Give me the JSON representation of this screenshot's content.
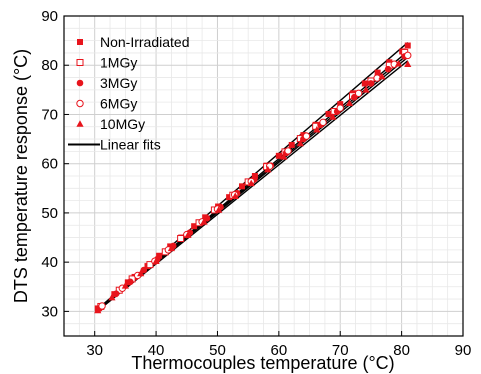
{
  "chart_data": {
    "type": "scatter",
    "title": "",
    "xlabel": "Thermocouples temperature (°C)",
    "ylabel": "DTS temperature response (°C)",
    "xlim": [
      25,
      90
    ],
    "ylim": [
      25,
      90
    ],
    "x_ticks": [
      30,
      40,
      50,
      60,
      70,
      80,
      90
    ],
    "y_ticks": [
      30,
      40,
      50,
      60,
      70,
      80,
      90
    ],
    "grid": true,
    "legend_position": "top-left",
    "marker_color": "#e8141c",
    "fit_color": "#000000",
    "series": [
      {
        "name": "Non-Irradiated",
        "marker": "filled-square",
        "points": [
          [
            30.5,
            30.6
          ],
          [
            33.2,
            33.5
          ],
          [
            35.4,
            35.9
          ],
          [
            36.5,
            37.0
          ],
          [
            38.6,
            39.2
          ],
          [
            40.5,
            41.3
          ],
          [
            42.3,
            43.2
          ],
          [
            44.1,
            45.0
          ],
          [
            46.2,
            47.3
          ],
          [
            48.0,
            49.1
          ],
          [
            50.1,
            51.3
          ],
          [
            51.9,
            53.2
          ],
          [
            54.0,
            55.4
          ],
          [
            56.1,
            57.5
          ],
          [
            58.0,
            59.6
          ],
          [
            60.0,
            61.6
          ],
          [
            62.1,
            63.8
          ],
          [
            64.0,
            65.8
          ],
          [
            66.0,
            67.9
          ],
          [
            68.1,
            70.1
          ],
          [
            70.0,
            72.1
          ],
          [
            72.1,
            74.3
          ],
          [
            74.0,
            76.3
          ],
          [
            76.1,
            78.5
          ],
          [
            78.0,
            80.6
          ],
          [
            80.1,
            82.8
          ],
          [
            81.0,
            84.0
          ]
        ],
        "fit": {
          "x0": 30.5,
          "y0": 30.5,
          "x1": 81.0,
          "y1": 84.6
        }
      },
      {
        "name": "1MGy",
        "marker": "open-square",
        "points": [
          [
            31.0,
            31.0
          ],
          [
            34.0,
            34.3
          ],
          [
            36.1,
            36.6
          ],
          [
            39.0,
            39.5
          ],
          [
            41.5,
            42.1
          ],
          [
            44.0,
            44.8
          ],
          [
            47.0,
            48.0
          ],
          [
            49.5,
            50.6
          ],
          [
            52.5,
            53.6
          ],
          [
            55.0,
            56.3
          ],
          [
            58.0,
            59.4
          ],
          [
            61.0,
            62.4
          ],
          [
            63.5,
            65.1
          ],
          [
            66.0,
            67.6
          ],
          [
            69.0,
            70.6
          ],
          [
            72.0,
            73.8
          ],
          [
            75.0,
            76.8
          ],
          [
            78.0,
            80.0
          ],
          [
            80.5,
            82.6
          ]
        ],
        "fit": {
          "x0": 30.5,
          "y0": 30.4,
          "x1": 81.0,
          "y1": 82.8
        }
      },
      {
        "name": "3MGy",
        "marker": "filled-circle",
        "points": [
          [
            30.8,
            30.6
          ],
          [
            33.5,
            33.6
          ],
          [
            35.8,
            36.0
          ],
          [
            38.0,
            38.4
          ],
          [
            40.2,
            40.6
          ],
          [
            42.8,
            43.3
          ],
          [
            45.5,
            46.0
          ],
          [
            48.3,
            48.9
          ],
          [
            50.5,
            51.2
          ],
          [
            53.2,
            54.0
          ],
          [
            56.0,
            56.8
          ],
          [
            58.7,
            59.6
          ],
          [
            61.2,
            62.2
          ],
          [
            64.0,
            65.0
          ],
          [
            66.8,
            67.9
          ],
          [
            69.5,
            70.6
          ],
          [
            72.3,
            73.5
          ],
          [
            75.0,
            76.3
          ],
          [
            77.8,
            79.2
          ],
          [
            80.5,
            81.8
          ]
        ],
        "fit": {
          "x0": 30.5,
          "y0": 30.3,
          "x1": 81.0,
          "y1": 81.6
        }
      },
      {
        "name": "6MGy",
        "marker": "open-circle",
        "points": [
          [
            31.2,
            31.1
          ],
          [
            34.5,
            34.7
          ],
          [
            37.0,
            37.3
          ],
          [
            39.8,
            40.2
          ],
          [
            42.0,
            42.5
          ],
          [
            45.0,
            45.6
          ],
          [
            47.5,
            48.2
          ],
          [
            50.0,
            50.8
          ],
          [
            52.8,
            53.7
          ],
          [
            55.5,
            56.4
          ],
          [
            58.5,
            59.5
          ],
          [
            61.5,
            62.6
          ],
          [
            64.5,
            65.6
          ],
          [
            67.2,
            68.4
          ],
          [
            70.0,
            71.3
          ],
          [
            73.0,
            74.3
          ],
          [
            76.0,
            77.4
          ],
          [
            78.8,
            80.2
          ],
          [
            81.0,
            82.0
          ]
        ],
        "fit": {
          "x0": 30.5,
          "y0": 30.3,
          "x1": 81.0,
          "y1": 82.2
        }
      },
      {
        "name": "10MGy",
        "marker": "filled-triangle",
        "points": [
          [
            30.5,
            30.2
          ],
          [
            32.8,
            32.8
          ],
          [
            35.0,
            35.2
          ],
          [
            37.5,
            37.7
          ],
          [
            40.0,
            40.2
          ],
          [
            42.5,
            42.8
          ],
          [
            45.2,
            45.5
          ],
          [
            47.8,
            48.2
          ],
          [
            50.2,
            50.6
          ],
          [
            52.9,
            53.4
          ],
          [
            55.5,
            56.0
          ],
          [
            58.2,
            58.8
          ],
          [
            60.8,
            61.4
          ],
          [
            63.5,
            64.1
          ],
          [
            66.2,
            66.9
          ],
          [
            68.8,
            69.5
          ],
          [
            71.5,
            72.3
          ],
          [
            74.2,
            75.0
          ],
          [
            76.8,
            77.7
          ],
          [
            79.5,
            80.3
          ],
          [
            81.0,
            80.2
          ]
        ],
        "fit": {
          "x0": 30.5,
          "y0": 30.1,
          "x1": 81.0,
          "y1": 80.9
        }
      }
    ],
    "fit_legend_label": "Linear fits"
  }
}
